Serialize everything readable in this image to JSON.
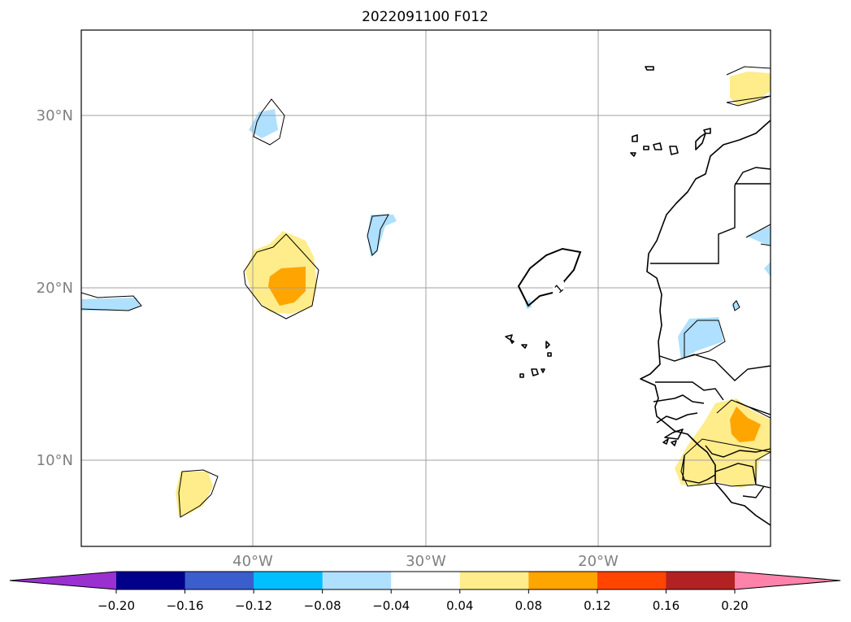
{
  "title": "2022091100 F012",
  "latitude_labels": [
    "30°N",
    "20°N",
    "10°N"
  ],
  "longitude_labels": [
    "40°W",
    "30°W",
    "20°W"
  ],
  "contour_label": "1",
  "colorbar": {
    "tick_labels": [
      "−0.20",
      "−0.16",
      "−0.12",
      "−0.08",
      "−0.04",
      "0.04",
      "0.08",
      "0.12",
      "0.16",
      "0.20"
    ],
    "colors": [
      "#9b30d0",
      "#00008b",
      "#3a5fcd",
      "#00bfff",
      "#b0e0ff",
      "#ffffff",
      "#ffec8b",
      "#ffa500",
      "#ff4500",
      "#b22222",
      "#ff82ab"
    ]
  },
  "fill_colors": {
    "light_blue": "#b0e0ff",
    "light_yellow": "#ffec8b",
    "orange": "#ffa500"
  }
}
